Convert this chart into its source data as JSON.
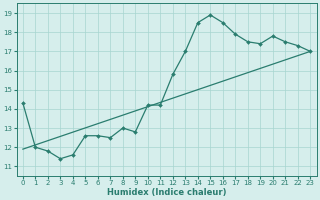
{
  "xlabel": "Humidex (Indice chaleur)",
  "xlim": [
    -0.5,
    23.5
  ],
  "ylim": [
    10.5,
    19.5
  ],
  "xticks": [
    0,
    1,
    2,
    3,
    4,
    5,
    6,
    7,
    8,
    9,
    10,
    11,
    12,
    13,
    14,
    15,
    16,
    17,
    18,
    19,
    20,
    21,
    22,
    23
  ],
  "yticks": [
    11,
    12,
    13,
    14,
    15,
    16,
    17,
    18,
    19
  ],
  "line1_x": [
    0,
    1,
    2,
    3,
    4,
    5,
    6,
    7,
    8,
    9,
    10,
    11,
    12,
    13,
    14,
    15,
    16,
    17,
    18,
    19,
    20,
    21,
    22,
    23
  ],
  "line1_y": [
    14.3,
    12.0,
    11.8,
    11.4,
    11.6,
    12.6,
    12.6,
    12.5,
    13.0,
    12.8,
    14.2,
    14.2,
    15.8,
    17.0,
    18.5,
    18.9,
    18.5,
    17.9,
    17.5,
    17.4,
    17.8,
    17.5,
    17.3,
    17.0
  ],
  "line2_x": [
    0,
    23
  ],
  "line2_y": [
    11.9,
    17.0
  ],
  "line_color": "#2a7d6f",
  "bg_color": "#d6eeec",
  "grid_color": "#a8d5d0",
  "tick_fontsize": 5,
  "xlabel_fontsize": 6
}
